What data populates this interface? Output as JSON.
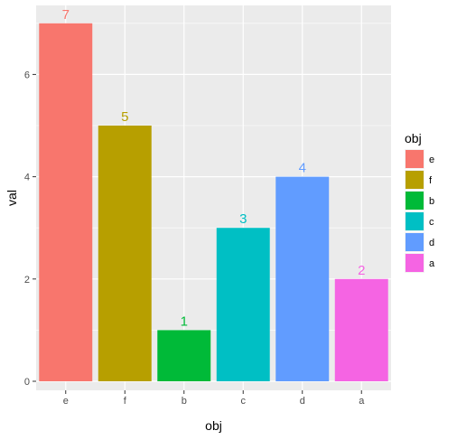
{
  "chart_data": {
    "type": "bar",
    "categories": [
      "e",
      "f",
      "b",
      "c",
      "d",
      "a"
    ],
    "values": [
      7,
      5,
      1,
      3,
      4,
      2
    ],
    "colors": [
      "#F8766D",
      "#B79F00",
      "#00BA38",
      "#00BFC4",
      "#619CFF",
      "#F564E3"
    ],
    "data_labels": [
      "7",
      "5",
      "1",
      "3",
      "4",
      "2"
    ],
    "xlabel": "obj",
    "ylabel": "val",
    "ylim": [
      0,
      7.35
    ],
    "yticks": [
      0,
      2,
      4,
      6
    ],
    "ytick_labels": [
      "0",
      "2",
      "4",
      "6"
    ],
    "grid": true,
    "panel_background": "#EBEBEB",
    "grid_color": "#FFFFFF",
    "legend": {
      "title": "obj",
      "position": "right",
      "items": [
        {
          "label": "e",
          "color": "#F8766D"
        },
        {
          "label": "f",
          "color": "#B79F00"
        },
        {
          "label": "b",
          "color": "#00BA38"
        },
        {
          "label": "c",
          "color": "#00BFC4"
        },
        {
          "label": "d",
          "color": "#619CFF"
        },
        {
          "label": "a",
          "color": "#F564E3"
        }
      ]
    }
  }
}
